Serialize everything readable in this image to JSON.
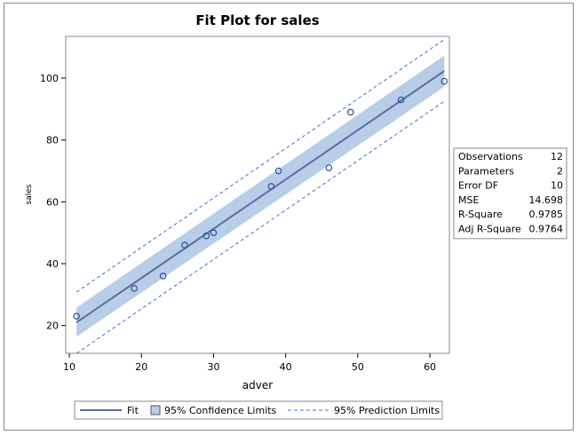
{
  "chart_data": {
    "type": "scatter",
    "title": "Fit Plot for sales",
    "xlabel": "adver",
    "ylabel": "sales",
    "xlim": [
      9.5,
      62.7
    ],
    "ylim": [
      11,
      113.5
    ],
    "x_ticks": [
      "10",
      "20",
      "30",
      "40",
      "50",
      "60"
    ],
    "y_ticks": [
      "20",
      "40",
      "60",
      "80",
      "100"
    ],
    "grid": false,
    "points": [
      {
        "x": 11,
        "y": 23
      },
      {
        "x": 19,
        "y": 32
      },
      {
        "x": 23,
        "y": 36
      },
      {
        "x": 26,
        "y": 46
      },
      {
        "x": 29,
        "y": 49
      },
      {
        "x": 30,
        "y": 50
      },
      {
        "x": 38,
        "y": 65
      },
      {
        "x": 39,
        "y": 70
      },
      {
        "x": 46,
        "y": 71
      },
      {
        "x": 49,
        "y": 89
      },
      {
        "x": 56,
        "y": 93
      },
      {
        "x": 62,
        "y": 99
      }
    ],
    "fit_line": {
      "x": [
        11,
        62
      ],
      "y": [
        21.0,
        102.3
      ]
    },
    "confidence_limits": {
      "x": [
        11,
        62
      ],
      "lower": [
        16.4,
        97.2
      ],
      "upper": [
        25.8,
        107.3
      ]
    },
    "prediction_limits": {
      "x": [
        11,
        62
      ],
      "lower": [
        11.0,
        92.5
      ],
      "upper": [
        30.8,
        112.5
      ]
    },
    "legend": {
      "placement": "bottom",
      "entries": [
        "Fit",
        "95% Confidence Limits",
        "95% Prediction Limits"
      ]
    },
    "stats_table": [
      {
        "label": "Observations",
        "value": "12"
      },
      {
        "label": "Parameters",
        "value": "2"
      },
      {
        "label": "Error DF",
        "value": "10"
      },
      {
        "label": "MSE",
        "value": "14.698"
      },
      {
        "label": "R-Square",
        "value": "0.9785"
      },
      {
        "label": "Adj R-Square",
        "value": "0.9764"
      }
    ],
    "colors": {
      "fit": "#5a6ea0",
      "band": "#b7cde8",
      "prediction": "#4a6fc8",
      "marker": "#2c4f9e"
    }
  }
}
